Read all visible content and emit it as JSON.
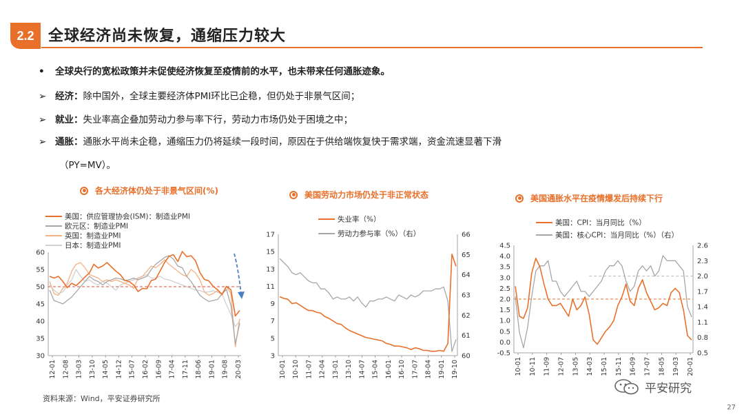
{
  "slide": {
    "section": "2.2",
    "title": "全球经济尚未恢复，通缩压力较大",
    "bullets": [
      {
        "marker": "•",
        "bold": "",
        "text": "全球央行的宽松政策并未促使经济恢复至疫情前的水平，也未带来任何通胀迹象。",
        "all_bold": true
      },
      {
        "marker": "➢",
        "bold": "经济：",
        "text": "除中国外，全球主要经济体PMI环比已企稳，但仍处于非景气区间；"
      },
      {
        "marker": "➢",
        "bold": "就业：",
        "text": "失业率高企叠加劳动力参与率下行，劳动力市场仍处于困境之中；"
      },
      {
        "marker": "➢",
        "bold": "通胀：",
        "text": "通胀水平尚未企稳，通缩压力仍将延续一段时间，原因在于供给端恢复快于需求端，资金流速显著下滑"
      }
    ],
    "bullet_cont": "（PY=MV）。",
    "source": "资料来源：Wind，平安证券研究所",
    "watermark": "平安研究",
    "page_number": "27"
  },
  "colors": {
    "accent": "#e8702a",
    "gray": "#a6a6a6",
    "light_orange": "#f4b183",
    "light_gray": "#d0d0d0",
    "blue": "#4a7fc1",
    "red": "#e0453a"
  },
  "chart_data": [
    {
      "type": "line",
      "title": "各大经济体仍处于非景气区间(%)",
      "x_ticks": [
        "12-01",
        "12-08",
        "13-03",
        "13-10",
        "14-05",
        "14-12",
        "15-07",
        "16-02",
        "16-09",
        "17-04",
        "17-11",
        "18-06",
        "19-01",
        "19-08",
        "20-03"
      ],
      "ylim": [
        30,
        60
      ],
      "y_ticks": [
        "30",
        "35",
        "40",
        "45",
        "50",
        "55",
        "60"
      ],
      "reference_line": 50,
      "series": [
        {
          "name": "美国：供应管理协会(ISM)：制造业PMI",
          "color": "#e8702a",
          "values": [
            53,
            52.5,
            53,
            51.5,
            49.7,
            51,
            50.3,
            51.5,
            52.8,
            54,
            56.5,
            55.4,
            56,
            57,
            55.7,
            54.5,
            53.5,
            51.8,
            51.5,
            50.5,
            48.6,
            49.5,
            49.4,
            51.8,
            52.2,
            54.6,
            57,
            58.8,
            59.3,
            57.3,
            60.2,
            58.7,
            59,
            57.5,
            54.1,
            52.1,
            51.7,
            50.1,
            49.1,
            47.8,
            50.1,
            49.1,
            41.5,
            43.1
          ]
        },
        {
          "name": "欧元区：制造业PMI",
          "color": "#a6a6a6",
          "values": [
            49,
            46,
            45.5,
            45,
            46,
            47,
            48.5,
            50,
            51.5,
            53,
            52,
            51.5,
            50.5,
            51.5,
            52,
            52.5,
            52.3,
            51.8,
            52,
            52.5,
            52,
            52.5,
            53,
            55,
            56.5,
            57.5,
            58.5,
            59,
            58,
            56,
            55.5,
            53,
            51.5,
            49.5,
            47.5,
            46.5,
            45.7,
            46,
            46.3,
            47.9,
            49.2,
            44.5,
            33.4,
            39.4
          ]
        },
        {
          "name": "英国：制造业PMI",
          "color": "#f4b183",
          "values": [
            51.5,
            48,
            47.5,
            49.5,
            51,
            54.5,
            56.5,
            57,
            55.5,
            53.5,
            53,
            52.5,
            51.5,
            52,
            51.5,
            52,
            51.5,
            51,
            50.5,
            49.5,
            52.5,
            53,
            54.5,
            56,
            55.5,
            56.5,
            57.8,
            56.5,
            55.5,
            54.5,
            53.5,
            53,
            55,
            54,
            52,
            48.5,
            47.5,
            48,
            48.9,
            47.5,
            50,
            48,
            32.6,
            40.7
          ]
        },
        {
          "name": "日本：制造业PMI",
          "color": "#d0d0d0",
          "values": [
            50.5,
            49,
            48,
            48.5,
            50.5,
            52,
            55,
            53,
            51.5,
            52,
            51,
            50.5,
            51.5,
            51,
            50,
            49,
            50.5,
            51,
            51.5,
            52,
            52.5,
            53,
            53.5,
            52.5,
            52.5,
            53,
            52.2,
            52,
            51.5,
            51,
            50.5,
            50,
            49.5,
            49,
            48.9,
            48.4,
            48.5,
            48.8,
            48.4,
            47.8,
            44.8,
            41.9,
            38.4,
            40.1
          ]
        }
      ]
    },
    {
      "type": "line",
      "title": "美国劳动力市场仍处于非正常状态",
      "x_ticks": [
        "10-01",
        "10-10",
        "11-07",
        "12-04",
        "13-01",
        "13-10",
        "14-07",
        "15-04",
        "16-01",
        "16-10",
        "17-07",
        "18-04",
        "19-01",
        "19-10"
      ],
      "ylim": [
        3,
        17
      ],
      "ylim_right": [
        60,
        66
      ],
      "y_ticks": [
        "3",
        "5",
        "7",
        "9",
        "11",
        "13",
        "15",
        "17"
      ],
      "y_ticks_right": [
        "60",
        "61",
        "62",
        "63",
        "64",
        "65",
        "66"
      ],
      "series": [
        {
          "name": "失业率（%）",
          "axis": "left",
          "color": "#e8702a",
          "values": [
            9.8,
            9.6,
            9.5,
            9.0,
            9.1,
            8.8,
            8.5,
            8.2,
            8.2,
            8.0,
            7.9,
            7.5,
            7.3,
            7.0,
            6.7,
            6.6,
            6.2,
            5.9,
            5.7,
            5.5,
            5.3,
            5.1,
            5.0,
            4.9,
            4.8,
            4.7,
            4.4,
            4.3,
            4.1,
            4.1,
            4.0,
            3.9,
            3.7,
            3.9,
            3.8,
            3.6,
            3.6,
            3.5,
            3.5,
            3.6,
            3.5,
            4.4,
            14.7,
            13.3
          ]
        },
        {
          "name": "劳动力参与率（%）（右）",
          "axis": "right",
          "color": "#a6a6a6",
          "values": [
            64.8,
            64.6,
            64.4,
            64.1,
            64.0,
            64.1,
            63.9,
            63.7,
            63.6,
            63.6,
            63.3,
            63.3,
            63.1,
            62.8,
            62.9,
            62.8,
            62.8,
            62.9,
            62.7,
            62.9,
            62.6,
            62.4,
            62.7,
            62.7,
            62.8,
            62.8,
            62.9,
            62.8,
            62.7,
            63.0,
            62.9,
            62.8,
            63.0,
            62.9,
            63.0,
            63.2,
            63.2,
            63.2,
            63.3,
            63.3,
            63.4,
            62.7,
            60.2,
            60.8
          ]
        }
      ]
    },
    {
      "type": "line",
      "title": "美国通胀水平在疫情爆发后持续下行",
      "x_ticks": [
        "10-01",
        "10-11",
        "11-09",
        "12-07",
        "13-05",
        "14-03",
        "15-01",
        "15-11",
        "16-09",
        "17-07",
        "18-05",
        "19-03",
        "20-01"
      ],
      "ylim": [
        -0.5,
        4.5
      ],
      "ylim_right": [
        0.5,
        2.6
      ],
      "y_ticks": [
        "-0.5",
        "0.0",
        "0.5",
        "1.0",
        "1.5",
        "2.0",
        "2.5",
        "3.0",
        "3.5",
        "4.0",
        "4.5"
      ],
      "y_ticks_right": [
        "0.5",
        "0.8",
        "1.1",
        "1.4",
        "1.7",
        "2.0",
        "2.3",
        "2.6"
      ],
      "reference_line": 2.0,
      "reference_line_right": 2.0,
      "series": [
        {
          "name": "美国：CPI：当月同比（%）",
          "axis": "left",
          "color": "#e8702a",
          "values": [
            2.6,
            1.2,
            1.1,
            1.6,
            3.2,
            3.9,
            3.5,
            2.7,
            2.0,
            1.7,
            1.7,
            1.8,
            1.5,
            1.2,
            2.0,
            1.5,
            1.7,
            2.1,
            1.3,
            0.1,
            -0.1,
            0.2,
            0.5,
            0.7,
            1.0,
            1.7,
            2.1,
            2.7,
            1.9,
            1.7,
            2.5,
            2.9,
            2.3,
            1.9,
            1.5,
            1.6,
            1.8,
            1.7,
            2.3,
            2.5,
            2.3,
            1.5,
            0.3,
            0.1
          ]
        },
        {
          "name": "美国：核心CPI：当月同比（%）（右）",
          "axis": "right",
          "color": "#a6a6a6",
          "values": [
            1.6,
            0.9,
            0.6,
            1.0,
            1.6,
            2.1,
            2.2,
            2.2,
            2.3,
            1.9,
            1.9,
            1.7,
            1.6,
            1.7,
            1.8,
            1.9,
            1.7,
            1.7,
            1.6,
            1.7,
            1.8,
            1.9,
            2.1,
            2.2,
            2.2,
            2.3,
            2.2,
            1.9,
            1.7,
            1.8,
            2.1,
            2.2,
            2.1,
            2.2,
            2.0,
            2.1,
            2.4,
            2.3,
            2.3,
            2.3,
            2.2,
            2.1,
            1.4,
            1.2
          ]
        }
      ]
    }
  ]
}
